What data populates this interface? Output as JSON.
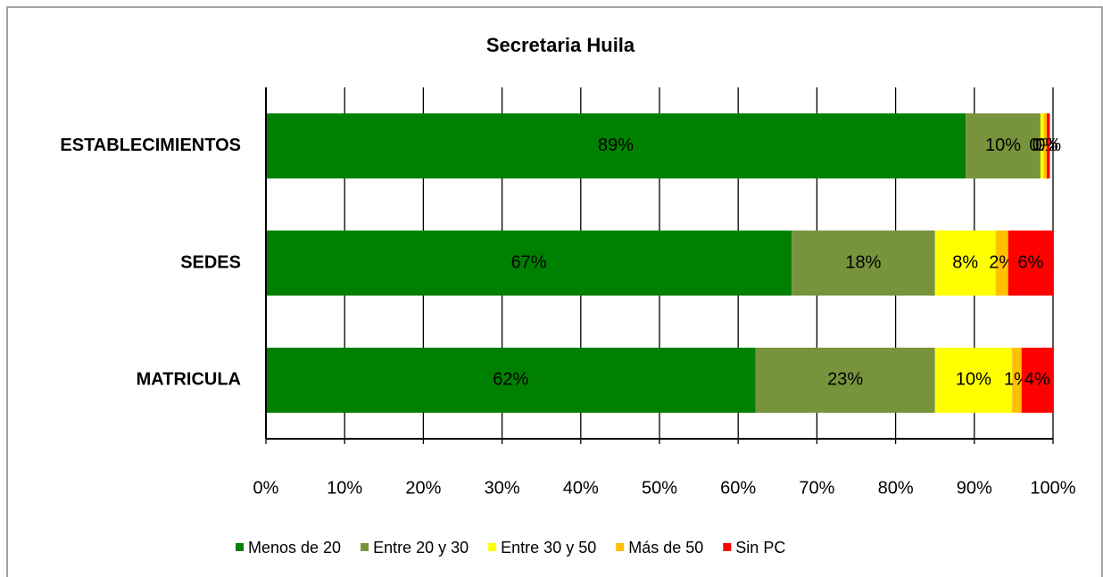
{
  "chart_data": {
    "type": "stacked_barh",
    "title": "Secretaria Huila",
    "categories": [
      "ESTABLECIMIENTOS",
      "SEDES",
      "MATRICULA"
    ],
    "series": [
      {
        "name": "Menos de 20",
        "color": "#008000",
        "values": [
          88.9,
          66.8,
          62.2
        ],
        "value_labels": [
          "89%",
          "67%",
          "62%"
        ]
      },
      {
        "name": "Entre 20 y 30",
        "color": "#77933c",
        "values": [
          9.5,
          18.2,
          22.8
        ],
        "value_labels": [
          "10%",
          "18%",
          "23%"
        ]
      },
      {
        "name": "Entre 30 y 50",
        "color": "#ffff00",
        "values": [
          0.4,
          7.7,
          9.8
        ],
        "value_labels": [
          "0%",
          "8%",
          "10%"
        ]
      },
      {
        "name": "Más de 50",
        "color": "#ffc000",
        "values": [
          0.4,
          1.6,
          1.2
        ],
        "value_labels": [
          "0%",
          "2%",
          "1%"
        ]
      },
      {
        "name": "Sin PC",
        "color": "#ff0000",
        "values": [
          0.4,
          5.7,
          4.0
        ],
        "value_labels": [
          "0%",
          "6%",
          "4%"
        ]
      }
    ],
    "xlim": [
      0,
      100
    ],
    "xticks": [
      {
        "value": 0,
        "label": "0%"
      },
      {
        "value": 10,
        "label": "10%"
      },
      {
        "value": 20,
        "label": "20%"
      },
      {
        "value": 30,
        "label": "30%"
      },
      {
        "value": 40,
        "label": "40%"
      },
      {
        "value": 50,
        "label": "50%"
      },
      {
        "value": 60,
        "label": "60%"
      },
      {
        "value": 70,
        "label": "70%"
      },
      {
        "value": 80,
        "label": "80%"
      },
      {
        "value": 90,
        "label": "90%"
      },
      {
        "value": 100,
        "label": "100%"
      }
    ],
    "grid": true,
    "legend": "bottom"
  }
}
